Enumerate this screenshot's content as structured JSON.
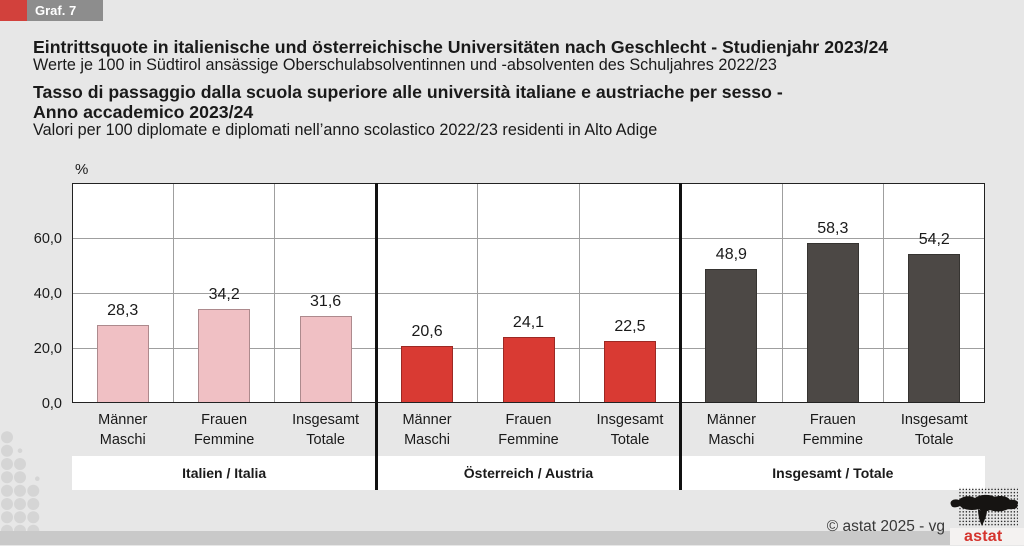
{
  "header": {
    "graf_label": "Graf. 7",
    "title_de": "Eintrittsquote in italienische und österreichische Universitäten nach Geschlecht - Studienjahr 2023/24",
    "subtitle_de": "Werte je 100 in Südtirol ansässige Oberschulabsolventinnen und -absolventen des Schuljahres 2022/23",
    "title_it_line1": "Tasso di passaggio dalla scuola superiore alle università italiane e austriache per sesso -",
    "title_it_line2": "Anno accademico 2023/24",
    "subtitle_it": "Valori per 100 diplomate e diplomati nell’anno scolastico 2022/23 residenti in Alto Adige"
  },
  "chart_data": {
    "type": "bar",
    "ylabel": "%",
    "ylim": [
      0,
      80
    ],
    "grid": true,
    "yticks": [
      {
        "value": 0,
        "label": "0,0"
      },
      {
        "value": 20,
        "label": "20,0"
      },
      {
        "value": 40,
        "label": "40,0"
      },
      {
        "value": 60,
        "label": "60,0"
      }
    ],
    "categories": [
      {
        "de": "Männer",
        "it": "Maschi"
      },
      {
        "de": "Frauen",
        "it": "Femmine"
      },
      {
        "de": "Insgesamt",
        "it": "Totale"
      }
    ],
    "groups": [
      {
        "label": "Italien / Italia",
        "bar_color": "#f0c0c4",
        "values": [
          28.3,
          34.2,
          31.6
        ],
        "value_labels": [
          "28,3",
          "34,2",
          "31,6"
        ]
      },
      {
        "label": "Österreich / Austria",
        "bar_color": "#d93a33",
        "values": [
          20.6,
          24.1,
          22.5
        ],
        "value_labels": [
          "20,6",
          "24,1",
          "22,5"
        ]
      },
      {
        "label": "Insgesamt / Totale",
        "bar_color": "#4c4845",
        "values": [
          48.9,
          58.3,
          54.2
        ],
        "value_labels": [
          "48,9",
          "58,3",
          "54,2"
        ]
      }
    ]
  },
  "footer": {
    "copyright": "© astat 2025 - vg",
    "logo_text": "astat"
  },
  "colors": {
    "accent_red": "#d2413c",
    "graf_box_gray": "#8d8d8d",
    "page_bg": "#e7e7e7",
    "footer_band": "#c9c9c9",
    "logo_red": "#d5342e",
    "grid_line": "#9f9f9f",
    "divider": "#111111"
  }
}
